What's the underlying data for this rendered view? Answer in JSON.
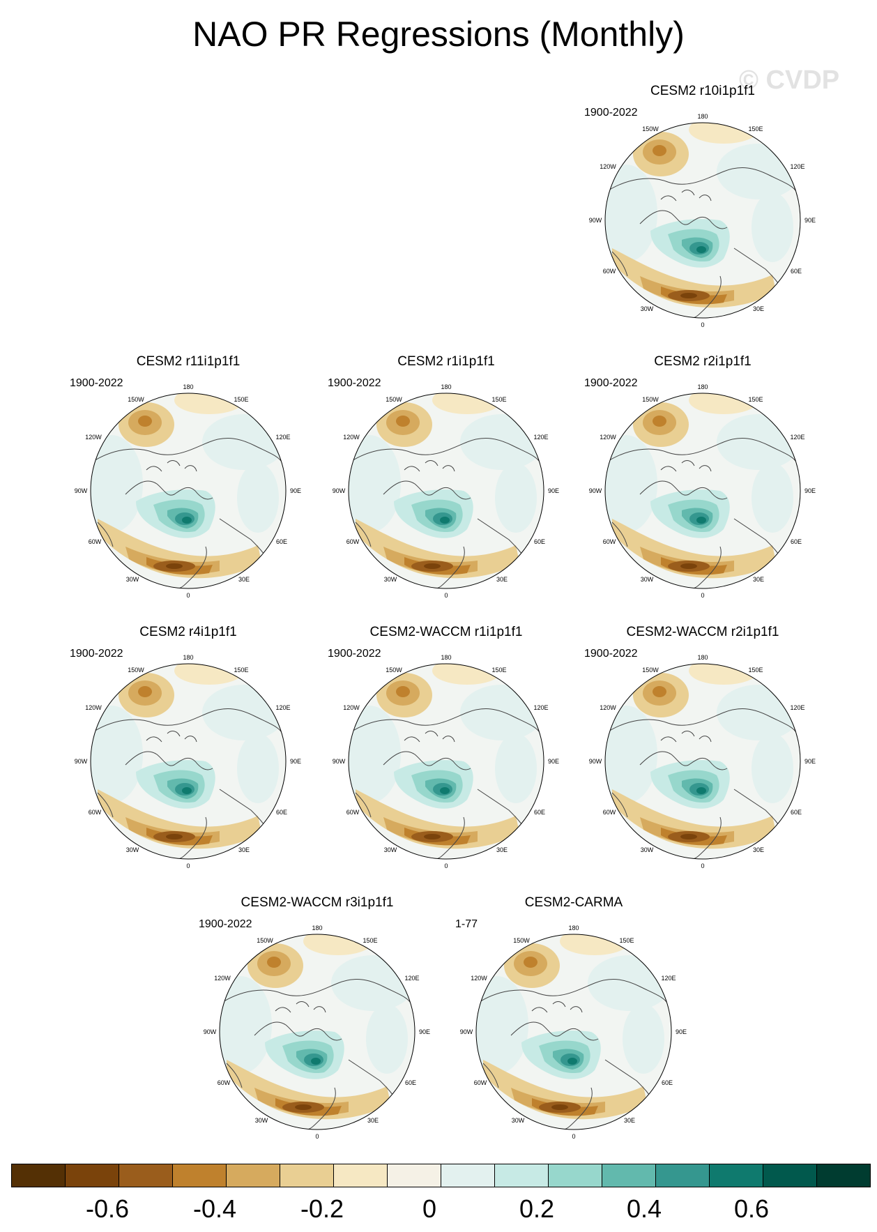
{
  "title": "NAO PR Regressions (Monthly)",
  "watermark": "© CVDP",
  "panels": [
    {
      "title": "CESM2 r10i1p1f1",
      "period": "1900-2022"
    },
    {
      "title": "CESM2 r11i1p1f1",
      "period": "1900-2022"
    },
    {
      "title": "CESM2 r1i1p1f1",
      "period": "1900-2022"
    },
    {
      "title": "CESM2 r2i1p1f1",
      "period": "1900-2022"
    },
    {
      "title": "CESM2 r4i1p1f1",
      "period": "1900-2022"
    },
    {
      "title": "CESM2-WACCM r1i1p1f1",
      "period": "1900-2022"
    },
    {
      "title": "CESM2-WACCM r2i1p1f1",
      "period": "1900-2022"
    },
    {
      "title": "CESM2-WACCM r3i1p1f1",
      "period": "1900-2022"
    },
    {
      "title": "CESM2-CARMA",
      "period": "1-77"
    }
  ],
  "longitude_labels": {
    "top": "180",
    "bottom": "0",
    "left_upper": "150W",
    "left_mid_upper": "120W",
    "left_mid": "90W",
    "left_mid_lower": "60W",
    "left_lower": "30W",
    "right_upper": "150E",
    "right_mid_upper": "120E",
    "right_mid": "90E",
    "right_mid_lower": "60E",
    "right_lower": "30E"
  },
  "colorbar": {
    "colors": [
      "#543005",
      "#7a430b",
      "#9a5d1c",
      "#bf812d",
      "#d6aa5e",
      "#e9cf93",
      "#f6e8c3",
      "#f5f1e6",
      "#e3f1ef",
      "#c7eae5",
      "#97d7cc",
      "#62b9ad",
      "#35978f",
      "#0f7a6e",
      "#01594d",
      "#003c30"
    ],
    "tick_labels": [
      "-0.6",
      "-0.4",
      "-0.2",
      "0",
      "0.2",
      "0.4",
      "0.6"
    ]
  }
}
